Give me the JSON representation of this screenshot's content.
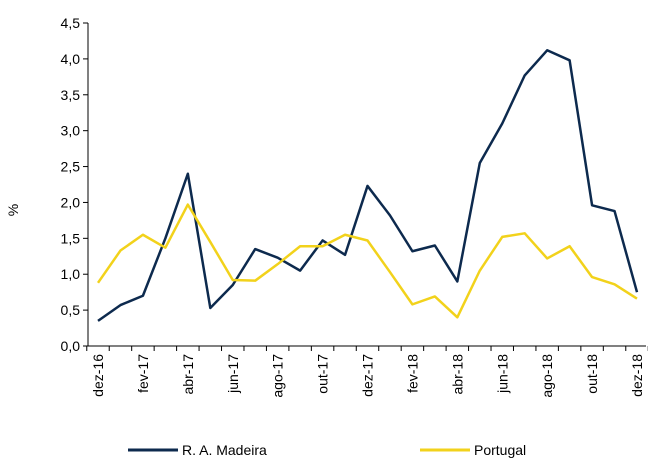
{
  "chart_data": {
    "type": "line",
    "y_label": "%",
    "categories": [
      "dez-16",
      null,
      "fev-17",
      null,
      "abr-17",
      null,
      "jun-17",
      null,
      "ago-17",
      null,
      "out-17",
      null,
      "dez-17",
      null,
      "fev-18",
      null,
      "abr-18",
      null,
      "jun-18",
      null,
      "ago-18",
      null,
      "out-18",
      null,
      "dez-18"
    ],
    "series": [
      {
        "name": "R. A. Madeira",
        "color": "#0d2a4e",
        "values": [
          0.35,
          0.57,
          0.7,
          1.5,
          2.4,
          0.53,
          0.85,
          1.35,
          1.23,
          1.05,
          1.47,
          1.27,
          2.23,
          1.82,
          1.32,
          1.4,
          0.9,
          2.55,
          3.1,
          3.77,
          4.12,
          3.98,
          1.96,
          1.88,
          0.75
        ]
      },
      {
        "name": "Portugal",
        "color": "#f2d21b",
        "values": [
          0.88,
          1.33,
          1.55,
          1.37,
          1.97,
          1.45,
          0.92,
          0.91,
          1.14,
          1.39,
          1.39,
          1.55,
          1.47,
          1.03,
          0.58,
          0.69,
          0.4,
          1.05,
          1.52,
          1.57,
          1.22,
          1.39,
          0.96,
          0.86,
          0.66
        ]
      }
    ],
    "ylim": [
      0,
      4.5
    ],
    "yticks": [
      {
        "value": 0,
        "label": "0,0"
      },
      {
        "value": 0.5,
        "label": "0,5"
      },
      {
        "value": 1,
        "label": "1,0"
      },
      {
        "value": 1.5,
        "label": "1,5"
      },
      {
        "value": 2,
        "label": "2,0"
      },
      {
        "value": 2.5,
        "label": "2,5"
      },
      {
        "value": 3,
        "label": "3,0"
      },
      {
        "value": 3.5,
        "label": "3,5"
      },
      {
        "value": 4,
        "label": "4,0"
      },
      {
        "value": 4.5,
        "label": "4,5"
      }
    ],
    "legend": "bottom"
  }
}
